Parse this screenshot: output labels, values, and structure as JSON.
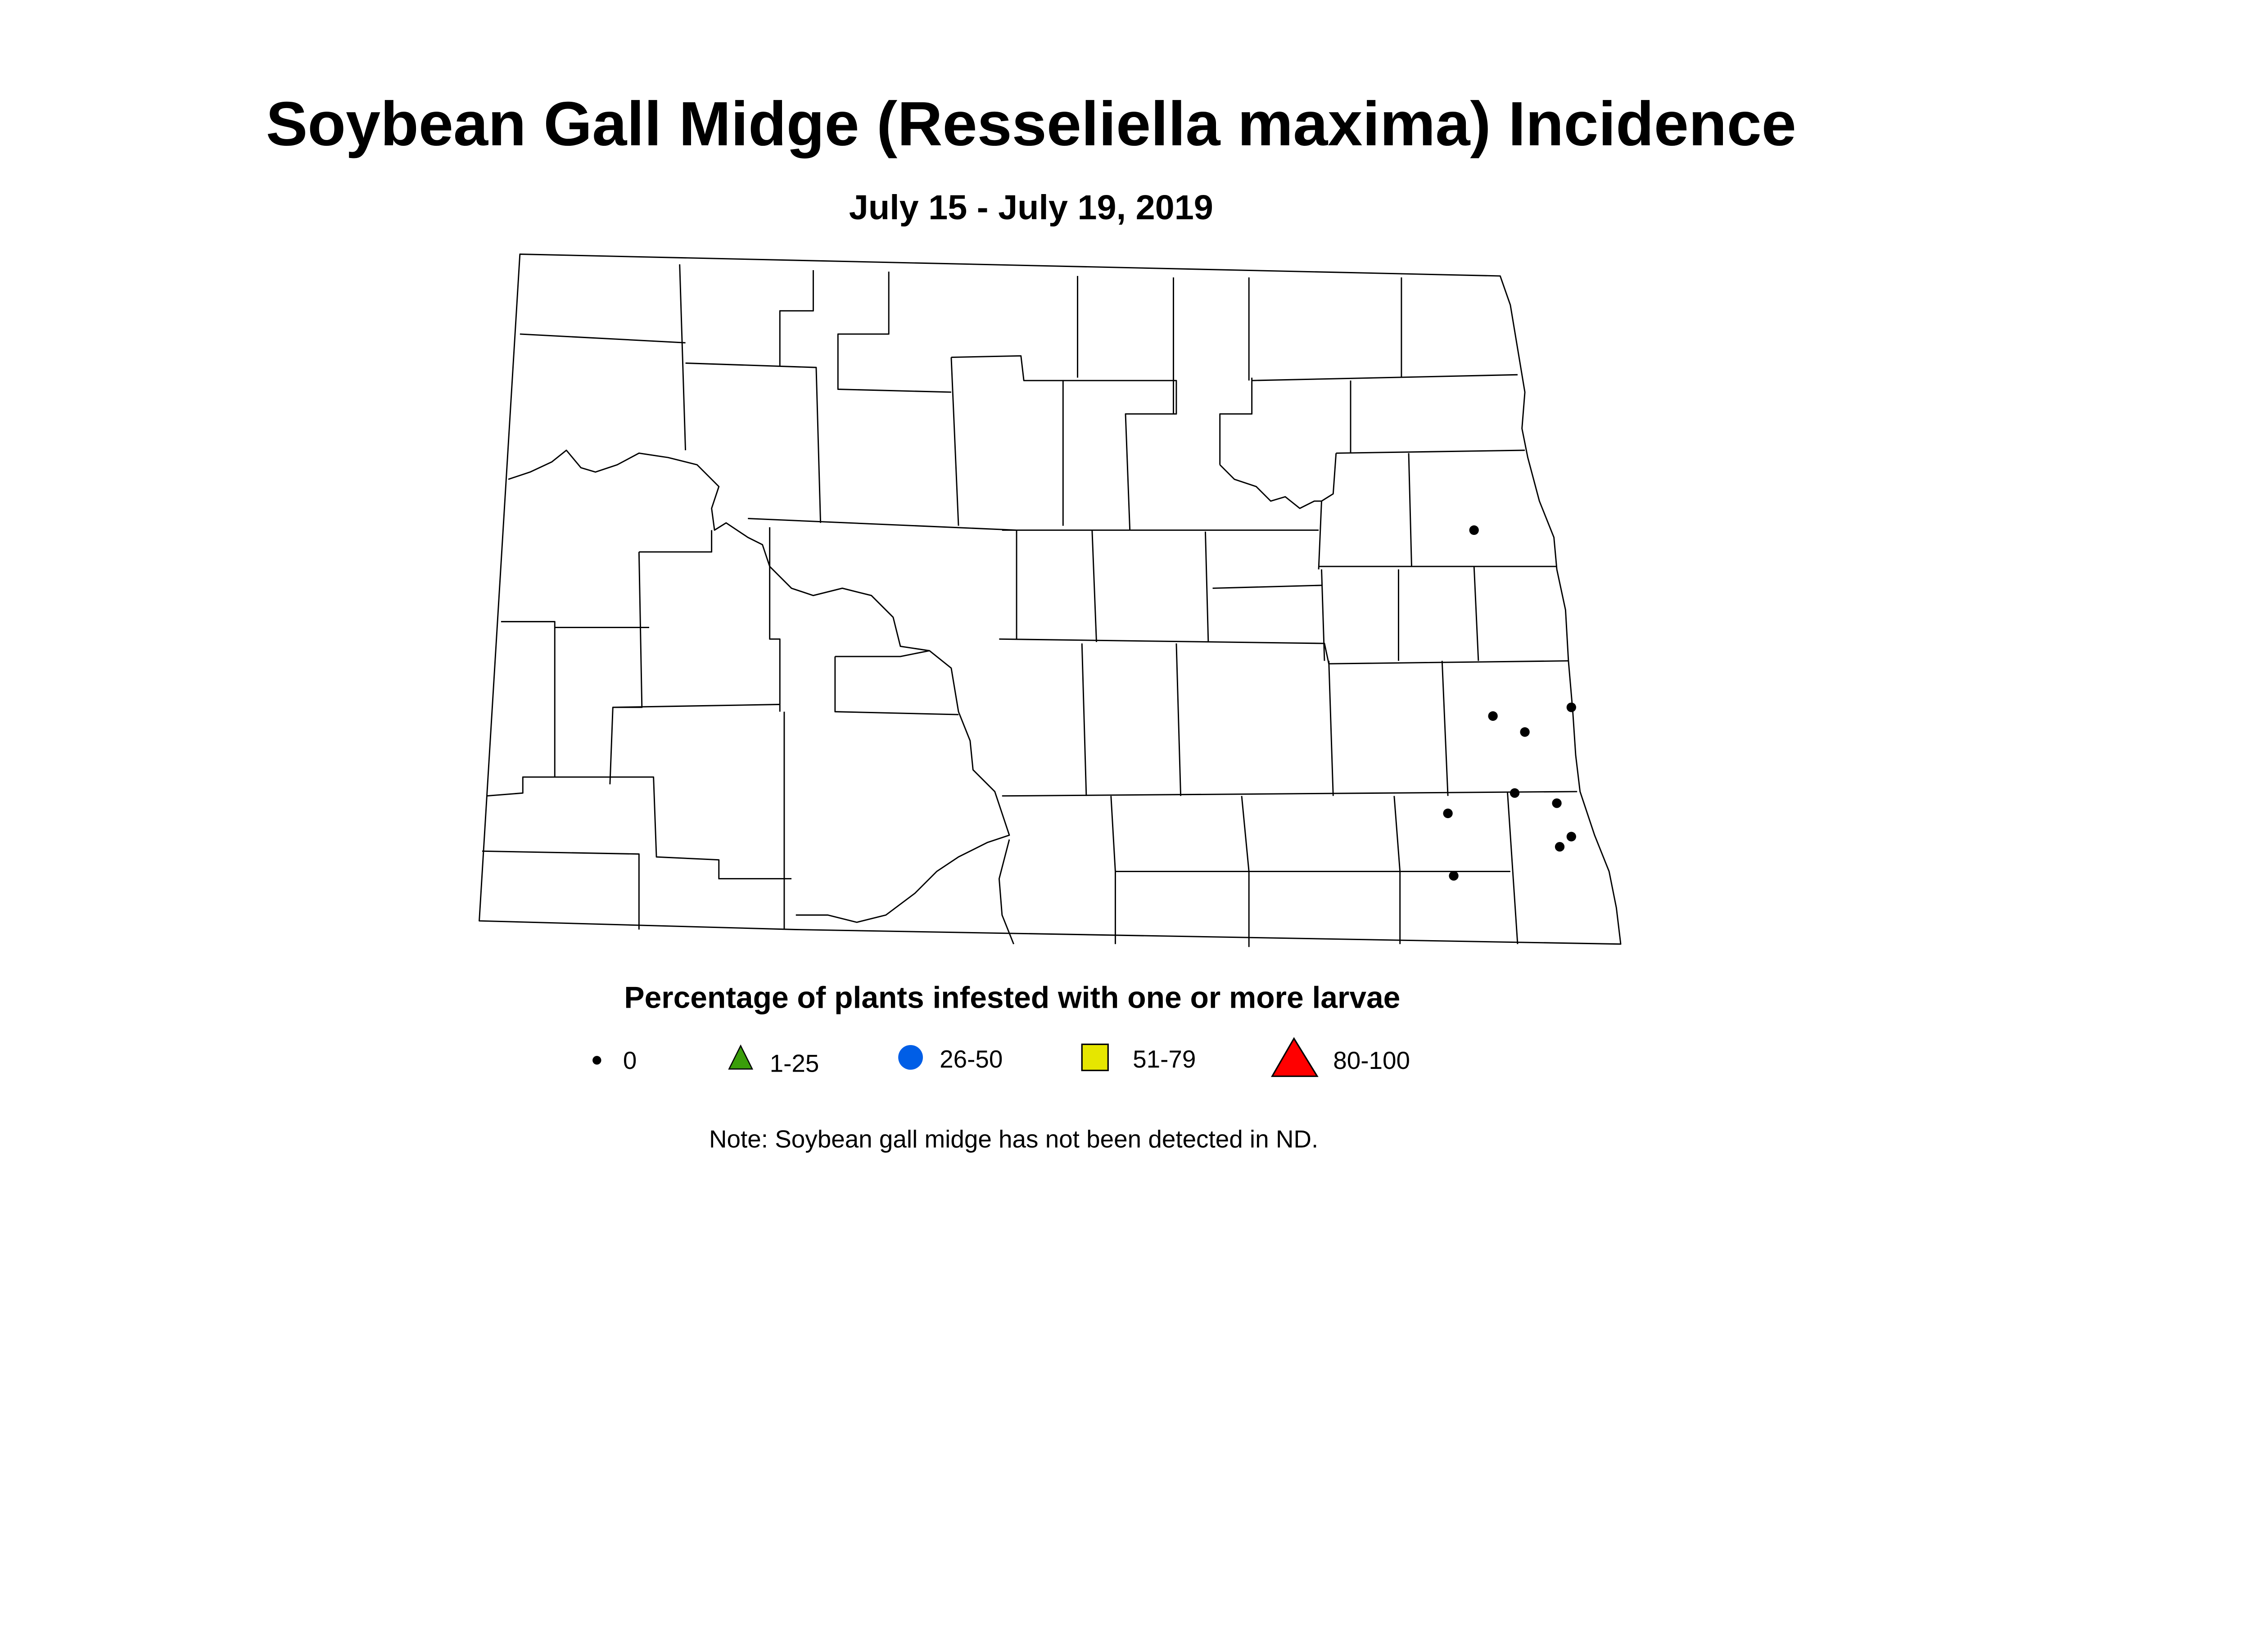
{
  "title": "Soybean Gall Midge (Resseliella maxima) Incidence",
  "subtitle": "July 15 - July 19, 2019",
  "legend": {
    "title": "Percentage of plants infested with one or more larvae",
    "items": [
      {
        "label": "0",
        "symbol": "small-dot",
        "color": "#000000"
      },
      {
        "label": "1-25",
        "symbol": "triangle",
        "color": "#3a9e0a"
      },
      {
        "label": "26-50",
        "symbol": "circle",
        "color": "#005ee6"
      },
      {
        "label": "51-79",
        "symbol": "square",
        "color": "#e6e600"
      },
      {
        "label": "80-100",
        "symbol": "large-triangle",
        "color": "#ff0000"
      }
    ]
  },
  "note": "Note:  Soybean gall midge has not been detected in ND.",
  "sites": {
    "category": "0",
    "count": 10
  }
}
